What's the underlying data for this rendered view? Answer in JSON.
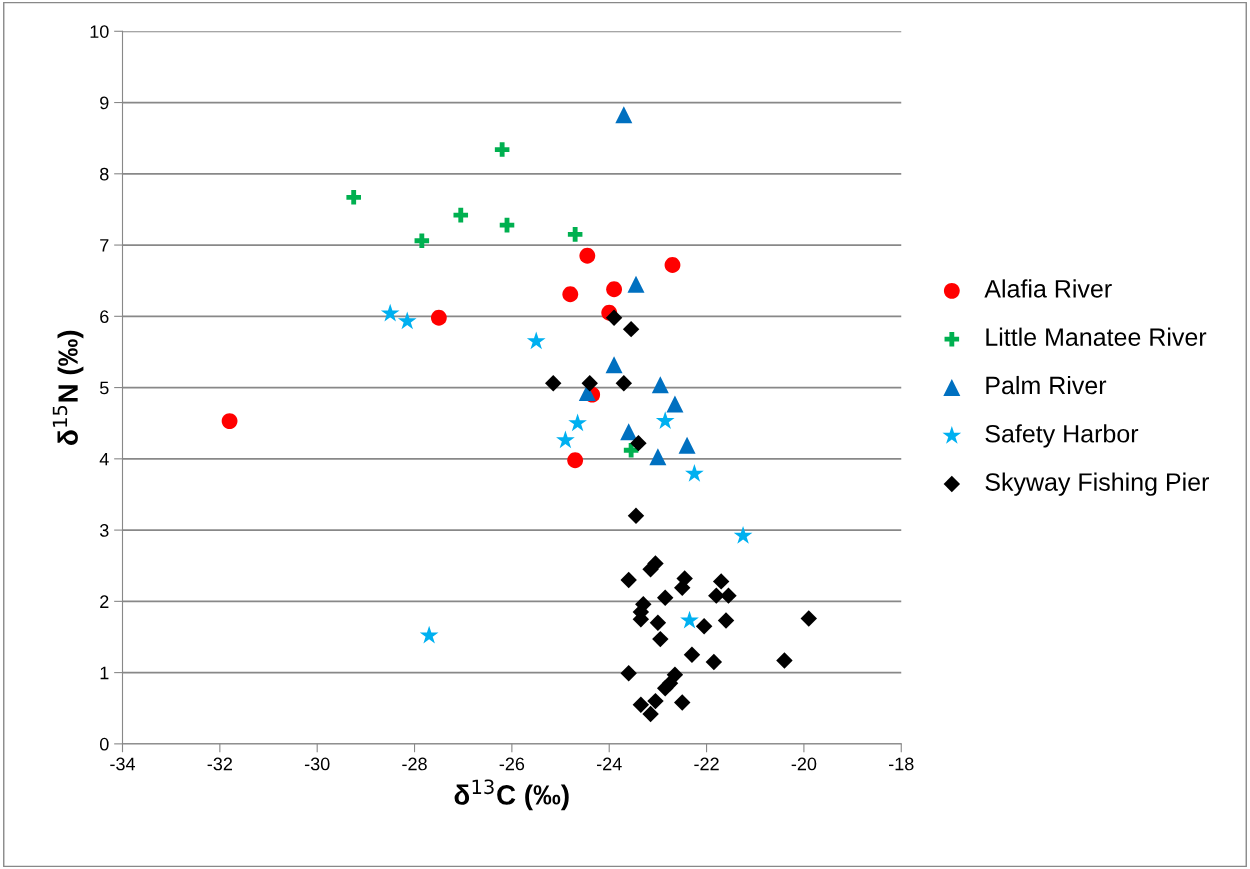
{
  "chart_data": {
    "type": "scatter",
    "xlabel": "δ$^{13}$C (‰)",
    "ylabel": "δ$^{15}$N (‰)",
    "xlim": [
      -34,
      -18
    ],
    "xticks": [
      -34,
      -32,
      -30,
      -28,
      -26,
      -24,
      -22,
      -20,
      -18
    ],
    "ylim": [
      0,
      10
    ],
    "yticks": [
      0,
      1,
      2,
      3,
      4,
      5,
      6,
      7,
      8,
      9,
      10
    ],
    "grid": "y",
    "legend": "right",
    "series": [
      {
        "name": "Alafia River",
        "color": "#ff0000",
        "marker": "circle",
        "x": [
          -31.8,
          -27.5,
          -24.8,
          -24.45,
          -23.9,
          -22.7,
          -24.0,
          -24.35,
          -24.7
        ],
        "values": [
          4.53,
          5.98,
          6.31,
          6.85,
          6.38,
          6.72,
          6.05,
          4.9,
          3.98
        ]
      },
      {
        "name": "Little Manatee River",
        "color": "#00b050",
        "marker": "cross",
        "x": [
          -29.25,
          -27.85,
          -27.05,
          -26.2,
          -26.1,
          -24.7,
          -23.55
        ],
        "values": [
          7.67,
          7.06,
          7.42,
          8.34,
          7.28,
          7.15,
          4.12
        ]
      },
      {
        "name": "Palm River",
        "color": "#0070c0",
        "marker": "triangle",
        "x": [
          -23.7,
          -23.45,
          -23.9,
          -24.45,
          -22.95,
          -22.65,
          -23.6,
          -22.4,
          -23.0
        ],
        "values": [
          8.83,
          6.45,
          5.32,
          4.93,
          5.04,
          4.77,
          4.38,
          4.19,
          4.03
        ]
      },
      {
        "name": "Safety Harbor",
        "color": "#00b0f0",
        "marker": "star",
        "x": [
          -28.5,
          -28.15,
          -25.5,
          -24.65,
          -24.9,
          -22.85,
          -22.25,
          -21.25,
          -22.35,
          -27.7
        ],
        "values": [
          6.04,
          5.93,
          5.65,
          4.5,
          4.26,
          4.53,
          3.79,
          2.92,
          1.73,
          1.52
        ]
      },
      {
        "name": "Skyway Fishing Pier",
        "color": "#000000",
        "marker": "diamond",
        "x": [
          -23.9,
          -23.55,
          -25.15,
          -24.4,
          -23.7,
          -23.4,
          -23.45,
          -23.05,
          -23.15,
          -22.45,
          -23.6,
          -22.5,
          -21.7,
          -21.8,
          -21.55,
          -23.3,
          -23.35,
          -22.85,
          -23.35,
          -23.0,
          -22.05,
          -21.6,
          -19.9,
          -22.95,
          -22.3,
          -21.85,
          -20.4,
          -23.6,
          -22.65,
          -22.75,
          -22.85,
          -23.35,
          -23.05,
          -23.15,
          -22.5
        ],
        "values": [
          5.98,
          5.82,
          5.06,
          5.06,
          5.06,
          4.22,
          3.2,
          2.53,
          2.45,
          2.32,
          2.3,
          2.19,
          2.28,
          2.08,
          2.08,
          1.96,
          1.85,
          2.05,
          1.75,
          1.7,
          1.65,
          1.73,
          1.76,
          1.47,
          1.25,
          1.15,
          1.17,
          0.99,
          0.97,
          0.85,
          0.78,
          0.55,
          0.6,
          0.42,
          0.58
        ]
      }
    ]
  }
}
